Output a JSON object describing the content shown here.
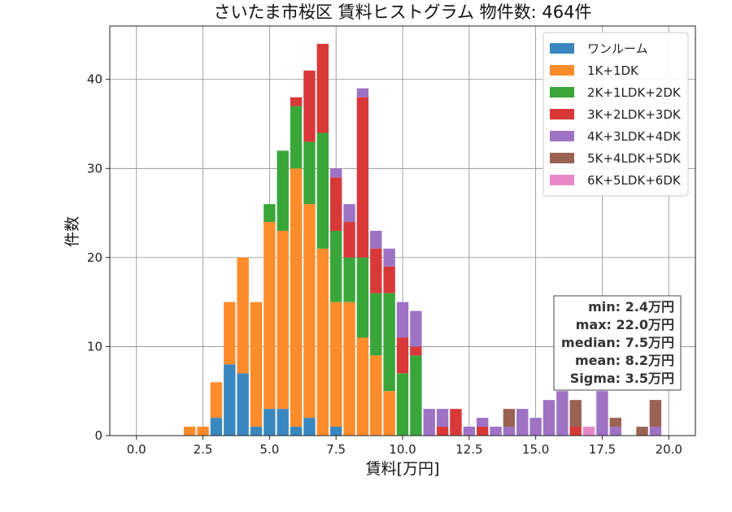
{
  "chart_data": {
    "type": "bar",
    "stacked": true,
    "title": "さいたま市桜区 賃料ヒストグラム 物件数: 464件",
    "xlabel": "賃料[万円]",
    "ylabel": "件数",
    "xlim": [
      -1.0,
      21.0
    ],
    "ylim": [
      0,
      46
    ],
    "xticks": [
      "0.0",
      "2.5",
      "5.0",
      "7.5",
      "10.0",
      "12.5",
      "15.0",
      "17.5",
      "20.0"
    ],
    "yticks": [
      "0",
      "10",
      "20",
      "30",
      "40"
    ],
    "grid": true,
    "legend_position": "top-right",
    "bin_width": 0.5,
    "x": [
      2.0,
      2.5,
      3.0,
      3.5,
      4.0,
      4.5,
      5.0,
      5.5,
      6.0,
      6.5,
      7.0,
      7.5,
      8.0,
      8.5,
      9.0,
      9.5,
      10.0,
      10.5,
      11.0,
      11.5,
      12.0,
      12.5,
      13.0,
      13.5,
      14.0,
      14.5,
      15.0,
      15.5,
      16.0,
      16.5,
      17.0,
      17.5,
      18.0,
      18.5,
      19.0,
      19.5
    ],
    "series": [
      {
        "name": "ワンルーム",
        "color": "#3a87c0",
        "values": [
          0,
          0,
          2,
          8,
          7,
          1,
          3,
          3,
          1,
          2,
          0,
          1,
          0,
          0,
          0,
          0,
          0,
          0,
          0,
          0,
          0,
          0,
          0,
          0,
          0,
          0,
          0,
          0,
          0,
          0,
          0,
          0,
          0,
          0,
          0,
          0
        ]
      },
      {
        "name": "1K+1DK",
        "color": "#ff8c2b",
        "values": [
          1,
          1,
          4,
          7,
          13,
          14,
          21,
          20,
          29,
          24,
          21,
          14,
          15,
          11,
          9,
          5,
          0,
          0,
          0,
          0,
          0,
          0,
          0,
          0,
          0,
          0,
          0,
          0,
          0,
          0,
          0,
          0,
          0,
          0,
          0,
          0
        ]
      },
      {
        "name": "2K+1LDK+2DK",
        "color": "#3aa63a",
        "values": [
          0,
          0,
          0,
          0,
          0,
          0,
          2,
          9,
          7,
          7,
          13,
          8,
          5,
          9,
          7,
          11,
          7,
          9,
          0,
          0,
          0,
          0,
          0,
          0,
          0,
          0,
          0,
          0,
          0,
          0,
          0,
          0,
          0,
          0,
          0,
          0
        ]
      },
      {
        "name": "3K+2LDK+3DK",
        "color": "#d93838",
        "values": [
          0,
          0,
          0,
          0,
          0,
          0,
          0,
          0,
          1,
          8,
          10,
          6,
          4,
          18,
          5,
          3,
          4,
          1,
          0,
          1,
          3,
          0,
          1,
          0,
          0,
          0,
          0,
          0,
          0,
          1,
          0,
          0,
          0,
          0,
          0,
          0
        ]
      },
      {
        "name": "4K+3LDK+4DK",
        "color": "#9e72c4",
        "values": [
          0,
          0,
          0,
          0,
          0,
          0,
          0,
          0,
          0,
          0,
          0,
          1,
          2,
          1,
          2,
          2,
          4,
          4,
          3,
          2,
          0,
          1,
          1,
          1,
          1,
          3,
          2,
          4,
          5,
          0,
          0,
          5,
          1,
          0,
          0,
          1
        ]
      },
      {
        "name": "5K+4LDK+5DK",
        "color": "#9a6253",
        "values": [
          0,
          0,
          0,
          0,
          0,
          0,
          0,
          0,
          0,
          0,
          0,
          0,
          0,
          0,
          0,
          0,
          0,
          0,
          0,
          0,
          0,
          0,
          0,
          0,
          2,
          0,
          0,
          0,
          0,
          3,
          0,
          0,
          1,
          0,
          1,
          3
        ]
      },
      {
        "name": "6K+5LDK+6DK",
        "color": "#e888c8",
        "values": [
          0,
          0,
          0,
          0,
          0,
          0,
          0,
          0,
          0,
          0,
          0,
          0,
          0,
          0,
          0,
          0,
          0,
          0,
          0,
          0,
          0,
          0,
          0,
          0,
          0,
          0,
          0,
          0,
          0,
          0,
          1,
          0,
          0,
          0,
          0,
          0
        ]
      }
    ],
    "stats": {
      "min": "min: 2.4万円",
      "max": "max: 22.0万円",
      "median": "median: 7.5万円",
      "mean": "mean: 8.2万円",
      "sigma": "Sigma: 3.5万円"
    }
  }
}
